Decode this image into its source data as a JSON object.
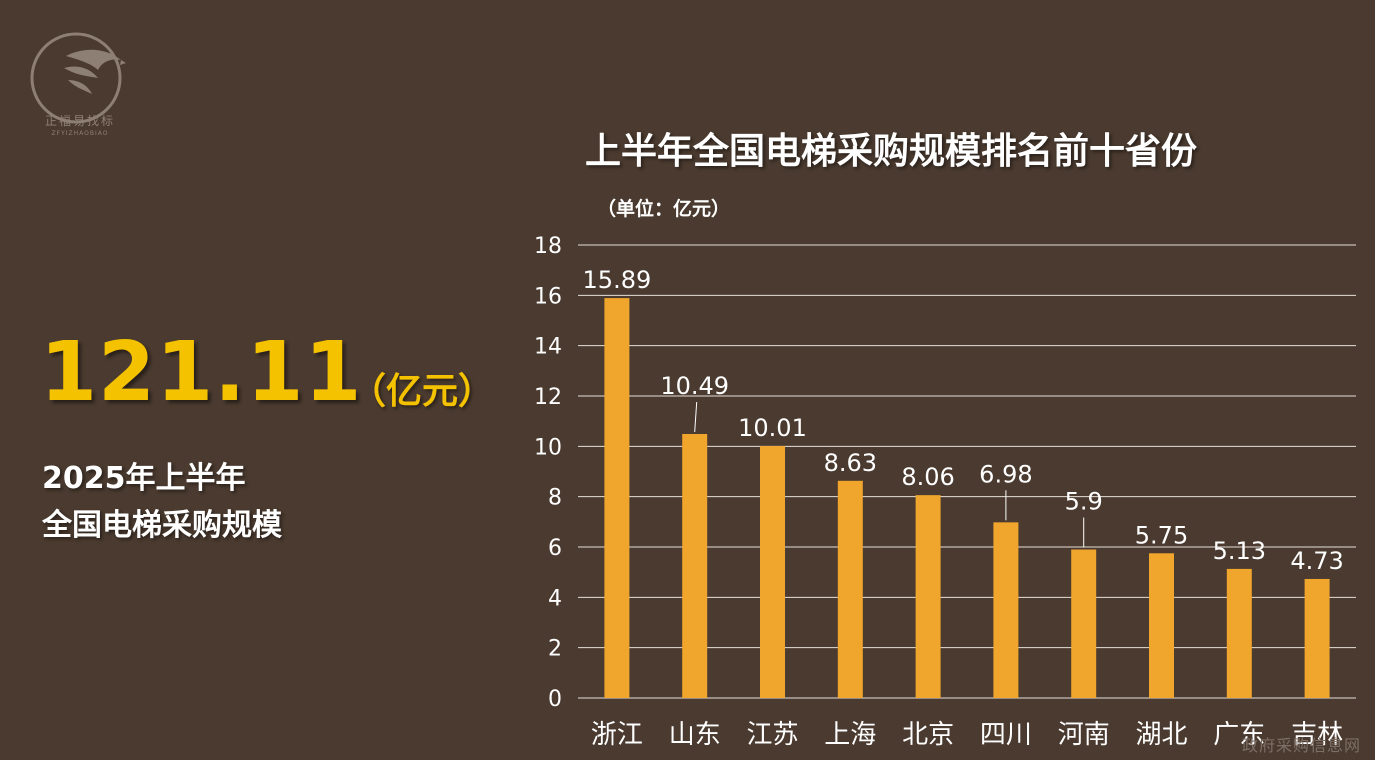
{
  "brand": {
    "logo_name": "falcon-logo-icon",
    "name_cn": "正福易找标",
    "name_en": "ZFYIZHAOBIAO"
  },
  "highlight": {
    "value": "121.11",
    "unit": "（亿元）",
    "line1": "2025年上半年",
    "line2": "全国电梯采购规模"
  },
  "chart_data": {
    "type": "bar",
    "title": "上半年全国电梯采购规模排名前十省份",
    "unit_label": "（单位：亿元）",
    "categories": [
      "浙江",
      "山东",
      "江苏",
      "上海",
      "北京",
      "四川",
      "河南",
      "湖北",
      "广东",
      "吉林"
    ],
    "values": [
      15.89,
      10.49,
      10.01,
      8.63,
      8.06,
      6.98,
      5.9,
      5.75,
      5.13,
      4.73
    ],
    "value_labels": [
      "15.89",
      "10.49",
      "10.01",
      "8.63",
      "8.06",
      "6.98",
      "5.9",
      "5.75",
      "5.13",
      "4.73"
    ],
    "ylim": [
      0,
      18
    ],
    "yticks": [
      "0",
      "2",
      "4",
      "6",
      "8",
      "10",
      "12",
      "14",
      "16",
      "18"
    ],
    "grid": true,
    "colors": {
      "bar": "#f0a52c",
      "grid": "#e6e0da",
      "text": "#ffffff",
      "highlight": "#f5c200"
    }
  },
  "watermark": "政府采购信息网"
}
